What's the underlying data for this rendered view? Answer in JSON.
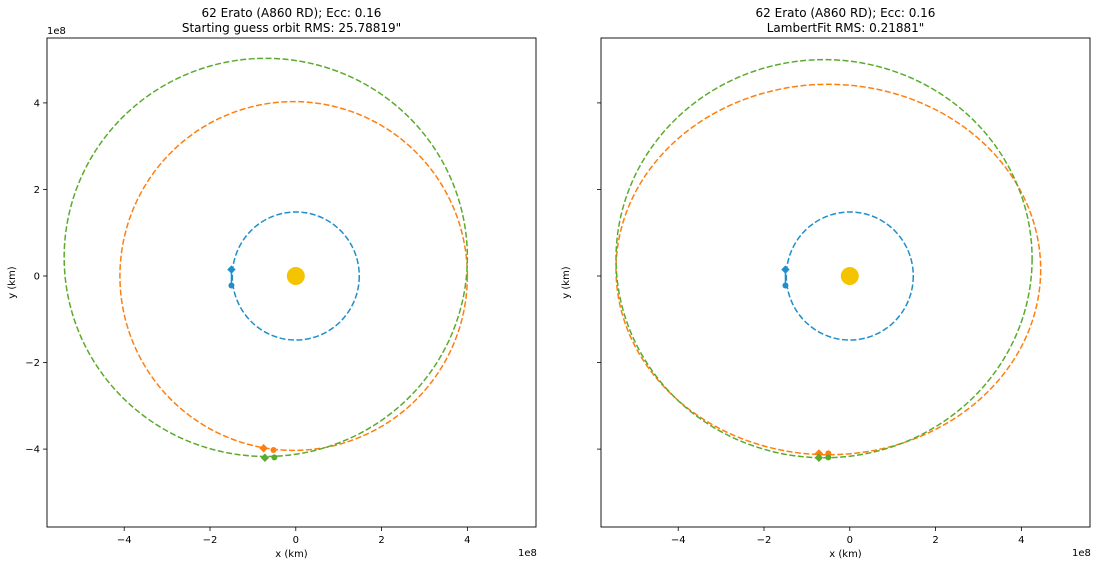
{
  "chart_data": [
    {
      "type": "scatter",
      "title_line1": "62 Erato (A860 RD); Ecc: 0.16",
      "title_line2": "Starting guess orbit RMS: 25.78819\"",
      "xlabel": "x (km)",
      "ylabel": "y (km)",
      "offset_text_x": "1e8",
      "offset_text_y": "1e8",
      "xlim": [
        -5.8,
        5.6
      ],
      "ylim": [
        -5.8,
        5.5
      ],
      "xticks": [
        -4,
        -2,
        0,
        2,
        4
      ],
      "xtick_labels": [
        "−4",
        "−2",
        "0",
        "2",
        "4"
      ],
      "yticks": [
        -4,
        -2,
        0,
        2,
        4
      ],
      "ytick_labels": [
        "−4",
        "−2",
        "0",
        "2",
        "4"
      ],
      "show_ytick_labels": true,
      "sun": {
        "x": 0,
        "y": 0,
        "color": "#f5c400"
      },
      "orbits": [
        {
          "name": "earth",
          "color": "#1f8fcc",
          "cx": 0.0,
          "cy": 0.0,
          "rx": 1.48,
          "ry": 1.48
        },
        {
          "name": "orbit-a",
          "color": "#ff7f0e",
          "cx": -0.05,
          "cy": 0.0,
          "rx": 4.05,
          "ry": 4.03
        },
        {
          "name": "orbit-b",
          "color": "#5aab2d",
          "cx": -0.7,
          "cy": 0.43,
          "rx": 4.7,
          "ry": 4.6
        }
      ],
      "markers": [
        {
          "shape": "diamond",
          "color": "#1f8fcc",
          "x": -1.5,
          "y": 0.15
        },
        {
          "shape": "circle",
          "color": "#1f8fcc",
          "x": -1.5,
          "y": -0.22
        },
        {
          "shape": "diamond",
          "color": "#ff7f0e",
          "x": -0.75,
          "y": -3.98
        },
        {
          "shape": "circle",
          "color": "#ff7f0e",
          "x": -0.52,
          "y": -4.02
        },
        {
          "shape": "diamond",
          "color": "#5aab2d",
          "x": -0.72,
          "y": -4.2
        },
        {
          "shape": "circle",
          "color": "#5aab2d",
          "x": -0.5,
          "y": -4.19
        }
      ]
    },
    {
      "type": "scatter",
      "title_line1": "62 Erato (A860 RD); Ecc: 0.16",
      "title_line2": "LambertFit RMS: 0.21881\"",
      "xlabel": "x (km)",
      "ylabel": "y (km)",
      "offset_text_x": "1e8",
      "offset_text_y": "",
      "xlim": [
        -5.8,
        5.6
      ],
      "ylim": [
        -5.8,
        5.5
      ],
      "xticks": [
        -4,
        -2,
        0,
        2,
        4
      ],
      "xtick_labels": [
        "−4",
        "−2",
        "0",
        "2",
        "4"
      ],
      "yticks": [
        -4,
        -2,
        0,
        2,
        4
      ],
      "ytick_labels": [],
      "show_ytick_labels": false,
      "sun": {
        "x": 0,
        "y": 0,
        "color": "#f5c400"
      },
      "orbits": [
        {
          "name": "earth",
          "color": "#1f8fcc",
          "cx": 0.0,
          "cy": 0.0,
          "rx": 1.48,
          "ry": 1.48
        },
        {
          "name": "orbit-a",
          "color": "#ff7f0e",
          "cx": -0.5,
          "cy": 0.15,
          "rx": 4.95,
          "ry": 4.28
        },
        {
          "name": "orbit-b",
          "color": "#5aab2d",
          "cx": -0.6,
          "cy": 0.4,
          "rx": 4.85,
          "ry": 4.6
        }
      ],
      "markers": [
        {
          "shape": "diamond",
          "color": "#1f8fcc",
          "x": -1.5,
          "y": 0.15
        },
        {
          "shape": "circle",
          "color": "#1f8fcc",
          "x": -1.5,
          "y": -0.22
        },
        {
          "shape": "diamond",
          "color": "#ff7f0e",
          "x": -0.72,
          "y": -4.1
        },
        {
          "shape": "circle",
          "color": "#ff7f0e",
          "x": -0.5,
          "y": -4.1
        },
        {
          "shape": "diamond",
          "color": "#5aab2d",
          "x": -0.72,
          "y": -4.2
        },
        {
          "shape": "circle",
          "color": "#5aab2d",
          "x": -0.5,
          "y": -4.19
        }
      ]
    }
  ]
}
